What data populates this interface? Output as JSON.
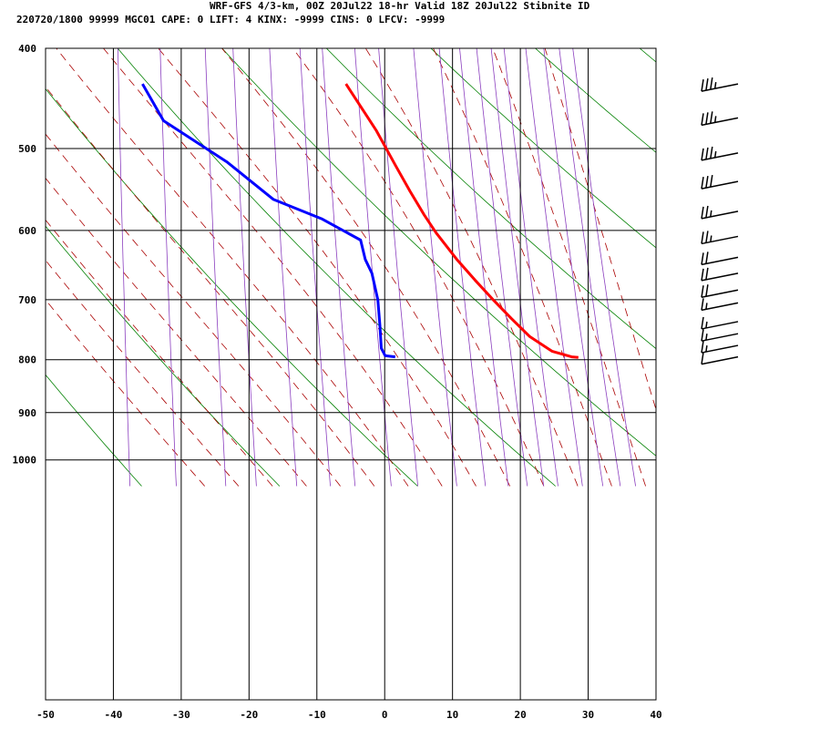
{
  "header": {
    "line1": "WRF-GFS 4/3-km, 00Z 20Jul22 18-hr Valid 18Z 20Jul22 Stibnite ID",
    "line2": "220720/1800 99999  MGC01   CAPE:     0 LIFT:     4 KINX: -9999 CINS:     0 LFCV: -9999"
  },
  "chart_data": {
    "type": "line",
    "subtype": "skew-t log-p sounding",
    "x_axis": {
      "label": "",
      "ticks": [
        -50,
        -40,
        -30,
        -20,
        -10,
        0,
        10,
        20,
        30,
        40
      ],
      "range": [
        -50,
        40
      ]
    },
    "y_axis": {
      "label": "",
      "scale": "log",
      "ticks": [
        400,
        500,
        600,
        700,
        800,
        900,
        1000
      ],
      "range": [
        400,
        1040
      ],
      "inverted": true
    },
    "grid": true,
    "series": [
      {
        "role": "temperature",
        "color": "#ff0000",
        "points": [
          {
            "p": 433,
            "t": -15.7
          },
          {
            "p": 480,
            "t": -10.5
          },
          {
            "p": 520,
            "t": -7.0
          },
          {
            "p": 550,
            "t": -4.5
          },
          {
            "p": 580,
            "t": -2.0
          },
          {
            "p": 603,
            "t": 0.0
          },
          {
            "p": 640,
            "t": 3.5
          },
          {
            "p": 670,
            "t": 6.5
          },
          {
            "p": 700,
            "t": 9.5
          },
          {
            "p": 730,
            "t": 12.5
          },
          {
            "p": 760,
            "t": 15.5
          },
          {
            "p": 785,
            "t": 19.0
          },
          {
            "p": 795,
            "t": 22.0
          },
          {
            "p": 796,
            "t": 23.0
          }
        ]
      },
      {
        "role": "dewpoint",
        "color": "#0000ff",
        "points": [
          {
            "p": 433,
            "t": -45.7
          },
          {
            "p": 470,
            "t": -42.0
          },
          {
            "p": 515,
            "t": -32.0
          },
          {
            "p": 560,
            "t": -24.5
          },
          {
            "p": 585,
            "t": -17.0
          },
          {
            "p": 613,
            "t": -11.0
          },
          {
            "p": 640,
            "t": -10.0
          },
          {
            "p": 660,
            "t": -8.8
          },
          {
            "p": 700,
            "t": -7.5
          },
          {
            "p": 740,
            "t": -6.8
          },
          {
            "p": 780,
            "t": -6.2
          },
          {
            "p": 793,
            "t": -5.5
          },
          {
            "p": 795,
            "t": -4.0
          }
        ]
      }
    ],
    "background_lines": {
      "dry_adiabats": {
        "color": "#008000",
        "style": "solid"
      },
      "moist_adiabats": {
        "color": "#aa0000",
        "style": "dashed"
      },
      "mixing_ratio": {
        "color": "#8b3fbf",
        "style": "solid"
      }
    },
    "wind_barbs": [
      {
        "p": 433,
        "speed": 35
      },
      {
        "p": 467,
        "speed": 35
      },
      {
        "p": 505,
        "speed": 35
      },
      {
        "p": 538,
        "speed": 30
      },
      {
        "p": 575,
        "speed": 25
      },
      {
        "p": 608,
        "speed": 25
      },
      {
        "p": 637,
        "speed": 20
      },
      {
        "p": 660,
        "speed": 20
      },
      {
        "p": 685,
        "speed": 20
      },
      {
        "p": 705,
        "speed": 15
      },
      {
        "p": 735,
        "speed": 15
      },
      {
        "p": 755,
        "speed": 15
      },
      {
        "p": 775,
        "speed": 15
      },
      {
        "p": 795,
        "speed": 10
      }
    ]
  }
}
